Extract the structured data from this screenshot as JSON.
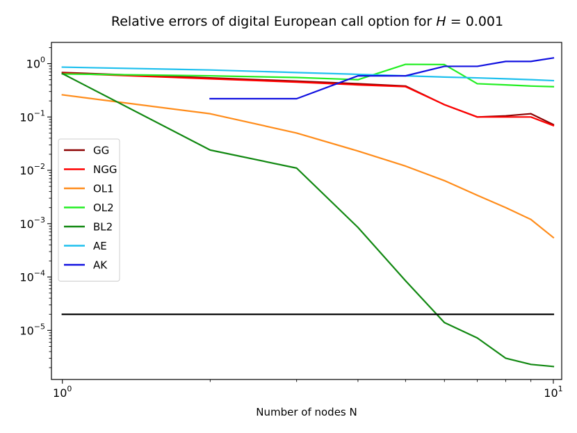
{
  "chart_data": {
    "type": "line",
    "title_prefix": "Relative errors of digital European call option for ",
    "title_var": "H",
    "title_suffix": " = 0.001",
    "xlabel": "Number of nodes N",
    "ylabel": "",
    "xscale": "log",
    "yscale": "log",
    "xlim": [
      0.95,
      10.4
    ],
    "ylim": [
      1.2e-06,
      2.5
    ],
    "grid": false,
    "legend_position": "center-left",
    "x_ticks": [
      {
        "value": 1,
        "base": "10",
        "exp": "0"
      },
      {
        "value": 10,
        "base": "10",
        "exp": "1"
      }
    ],
    "y_ticks": [
      {
        "value": 1e-05,
        "base": "10",
        "exp": "−5"
      },
      {
        "value": 0.0001,
        "base": "10",
        "exp": "−4"
      },
      {
        "value": 0.001,
        "base": "10",
        "exp": "−3"
      },
      {
        "value": 0.01,
        "base": "10",
        "exp": "−2"
      },
      {
        "value": 0.1,
        "base": "10",
        "exp": "−1"
      },
      {
        "value": 1,
        "base": "10",
        "exp": "0"
      }
    ],
    "series": [
      {
        "name": "GG",
        "color": "#8b0000",
        "x": [
          1,
          2,
          3,
          4,
          5,
          6,
          7,
          8,
          9,
          10
        ],
        "y": [
          0.68,
          0.54,
          0.47,
          0.42,
          0.38,
          0.17,
          0.1,
          0.105,
          0.115,
          0.072
        ]
      },
      {
        "name": "NGG",
        "color": "#ff0000",
        "x": [
          1,
          2,
          3,
          4,
          5,
          6,
          7,
          8,
          9,
          10
        ],
        "y": [
          0.66,
          0.52,
          0.45,
          0.4,
          0.37,
          0.17,
          0.1,
          0.1,
          0.1,
          0.069
        ]
      },
      {
        "name": "OL1",
        "color": "#ff8c1a",
        "x": [
          1,
          2,
          3,
          4,
          5,
          6,
          7,
          8,
          9,
          10
        ],
        "y": [
          0.26,
          0.115,
          0.05,
          0.023,
          0.012,
          0.0064,
          0.0034,
          0.002,
          0.0012,
          0.00055
        ]
      },
      {
        "name": "OL2",
        "color": "#22ee22",
        "x": [
          1,
          2,
          3,
          4,
          5,
          6,
          7,
          8,
          9,
          10
        ],
        "y": [
          0.64,
          0.59,
          0.55,
          0.5,
          0.97,
          0.96,
          0.42,
          0.4,
          0.38,
          0.37
        ]
      },
      {
        "name": "BL2",
        "color": "#118811",
        "x": [
          1,
          2,
          3,
          4,
          5,
          6,
          7,
          8,
          9,
          10
        ],
        "y": [
          0.65,
          0.024,
          0.011,
          0.00085,
          8.5e-05,
          1.4e-05,
          7.2e-06,
          3e-06,
          2.3e-06,
          2.1e-06
        ]
      },
      {
        "name": "AE",
        "color": "#1ec0ee",
        "x": [
          1,
          2,
          3,
          4,
          5,
          6,
          7,
          8,
          9,
          10
        ],
        "y": [
          0.86,
          0.76,
          0.68,
          0.63,
          0.59,
          0.56,
          0.54,
          0.52,
          0.5,
          0.48
        ]
      },
      {
        "name": "AK",
        "color": "#1010e0",
        "x": [
          2,
          3,
          4,
          5,
          6,
          7,
          8,
          9,
          10
        ],
        "y": [
          0.22,
          0.22,
          0.59,
          0.59,
          0.89,
          0.89,
          1.1,
          1.1,
          1.28
        ]
      },
      {
        "name": "",
        "color": "#000000",
        "x": [
          1,
          10
        ],
        "y": [
          2e-05,
          2e-05
        ]
      }
    ]
  }
}
